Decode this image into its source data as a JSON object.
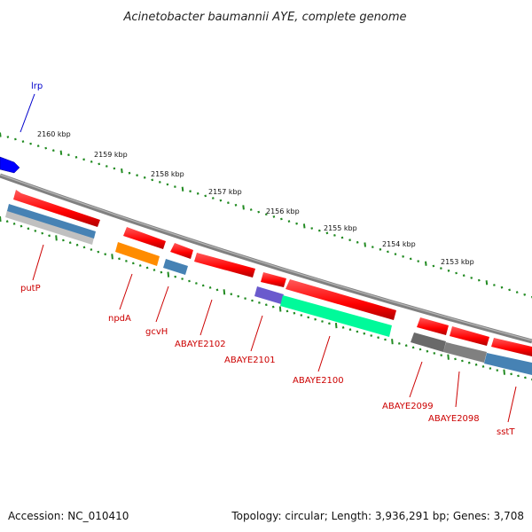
{
  "title": "Acinetobacter baumannii AYE, complete genome",
  "footer": {
    "accession": "Accession: NC_010410",
    "summary": "Topology: circular; Length: 3,936,291 bp; Genes: 3,708"
  },
  "colors": {
    "backbone": "#808080",
    "tick": "#228B22",
    "gene_red": "#ff0000",
    "label_red": "#cc0000",
    "label_blue": "#0000cc",
    "blue_feature": "#4682b4",
    "orange_feature": "#ff8c00",
    "purple_feature": "#6a5acd",
    "aqua_feature": "#00fa9a",
    "grey_feature": "#696969",
    "silver_feature": "#c0c0c0",
    "blue_gene": "#0000ff"
  },
  "kbp_labels": [
    "2160 kbp",
    "2159 kbp",
    "2158 kbp",
    "2157 kbp",
    "2156 kbp",
    "2155 kbp",
    "2154 kbp",
    "2153 kbp"
  ],
  "gene_labels": [
    "lrp",
    "putP",
    "npdA",
    "gcvH",
    "ABAYE2102",
    "ABAYE2101",
    "ABAYE2100",
    "ABAYE2099",
    "ABAYE2098",
    "sstT"
  ]
}
